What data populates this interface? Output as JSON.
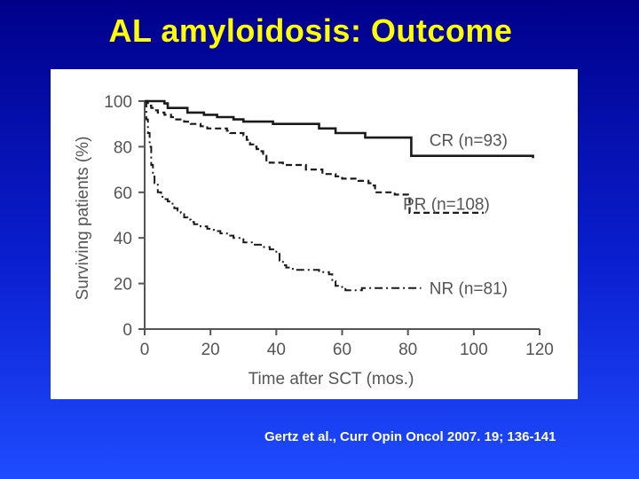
{
  "slide": {
    "title": "AL amyloidosis: Outcome",
    "citation": "Gertz et al., Curr Opin Oncol 2007. 19; 136-141"
  },
  "colors": {
    "background_top": "#00008a",
    "background_bottom": "#1f4cff",
    "title": "#ffff00",
    "citation": "#ffffff",
    "panel": "#ffffff",
    "curves": "#1a1a1a",
    "axis": "#555555"
  },
  "chart_data": {
    "type": "line",
    "title": "",
    "xlabel": "Time after SCT (mos.)",
    "ylabel": "Surviving patients (%)",
    "xlim": [
      0,
      120
    ],
    "ylim": [
      0,
      100
    ],
    "xticks": [
      0,
      20,
      40,
      60,
      80,
      100,
      120
    ],
    "yticks": [
      0,
      20,
      40,
      60,
      80,
      100
    ],
    "grid": false,
    "legend": "inline labels at curve ends",
    "series": [
      {
        "name": "CR (n=93)",
        "style": "solid",
        "points": [
          [
            0,
            100
          ],
          [
            2,
            100
          ],
          [
            6,
            99
          ],
          [
            7,
            97
          ],
          [
            12,
            97
          ],
          [
            13,
            95
          ],
          [
            16,
            95
          ],
          [
            18,
            94
          ],
          [
            21,
            94
          ],
          [
            22,
            93
          ],
          [
            25,
            93
          ],
          [
            27,
            92
          ],
          [
            29,
            92
          ],
          [
            30,
            91
          ],
          [
            38,
            91
          ],
          [
            39,
            90
          ],
          [
            51,
            90
          ],
          [
            53,
            88
          ],
          [
            57,
            88
          ],
          [
            58,
            86
          ],
          [
            66,
            86
          ],
          [
            67,
            84
          ],
          [
            78,
            84
          ],
          [
            80,
            84
          ],
          [
            81,
            76
          ],
          [
            102,
            76
          ],
          [
            118,
            75
          ]
        ]
      },
      {
        "name": "PR (n=108)",
        "style": "dashed",
        "points": [
          [
            0,
            100
          ],
          [
            1,
            98
          ],
          [
            2,
            97
          ],
          [
            3,
            96
          ],
          [
            4,
            95
          ],
          [
            6,
            94
          ],
          [
            8,
            93
          ],
          [
            9,
            92
          ],
          [
            12,
            91
          ],
          [
            14,
            90
          ],
          [
            17,
            89
          ],
          [
            19,
            88
          ],
          [
            24,
            88
          ],
          [
            25,
            87
          ],
          [
            26,
            86
          ],
          [
            28,
            86
          ],
          [
            30,
            85
          ],
          [
            31,
            83
          ],
          [
            32,
            81
          ],
          [
            33,
            80
          ],
          [
            34,
            79
          ],
          [
            35,
            78
          ],
          [
            36,
            76
          ],
          [
            37,
            74
          ],
          [
            38,
            73
          ],
          [
            41,
            73
          ],
          [
            42,
            72
          ],
          [
            48,
            72
          ],
          [
            49,
            70
          ],
          [
            52,
            70
          ],
          [
            54,
            68
          ],
          [
            58,
            67
          ],
          [
            60,
            66
          ],
          [
            63,
            66
          ],
          [
            65,
            65
          ],
          [
            68,
            64
          ],
          [
            69,
            63
          ],
          [
            70,
            60
          ],
          [
            75,
            60
          ],
          [
            76,
            59
          ],
          [
            78,
            59
          ],
          [
            80,
            58
          ],
          [
            80.5,
            51
          ],
          [
            103,
            51
          ]
        ]
      },
      {
        "name": "NR (n=81)",
        "style": "dash-dot",
        "points": [
          [
            0,
            100
          ],
          [
            0.5,
            92
          ],
          [
            1,
            86
          ],
          [
            1.5,
            80
          ],
          [
            2,
            72
          ],
          [
            2.5,
            68
          ],
          [
            3,
            64
          ],
          [
            4,
            60
          ],
          [
            5,
            58
          ],
          [
            6,
            57
          ],
          [
            7,
            56
          ],
          [
            8,
            55
          ],
          [
            9,
            53
          ],
          [
            10,
            52
          ],
          [
            11,
            51
          ],
          [
            12,
            49
          ],
          [
            13,
            48
          ],
          [
            14,
            47
          ],
          [
            15,
            46
          ],
          [
            17,
            45
          ],
          [
            19,
            44
          ],
          [
            21,
            43
          ],
          [
            23,
            42
          ],
          [
            25,
            41
          ],
          [
            27,
            40
          ],
          [
            30,
            38
          ],
          [
            33,
            37
          ],
          [
            36,
            36
          ],
          [
            38,
            35
          ],
          [
            40,
            33
          ],
          [
            41,
            30
          ],
          [
            42,
            28
          ],
          [
            43,
            27
          ],
          [
            45,
            26
          ],
          [
            52,
            26
          ],
          [
            53,
            25
          ],
          [
            56,
            24
          ],
          [
            57,
            21
          ],
          [
            58,
            19
          ],
          [
            60,
            18
          ],
          [
            61,
            17
          ],
          [
            63,
            17
          ],
          [
            66,
            18
          ],
          [
            70,
            18
          ],
          [
            76,
            18
          ],
          [
            80,
            18
          ],
          [
            84,
            18
          ]
        ]
      }
    ]
  }
}
